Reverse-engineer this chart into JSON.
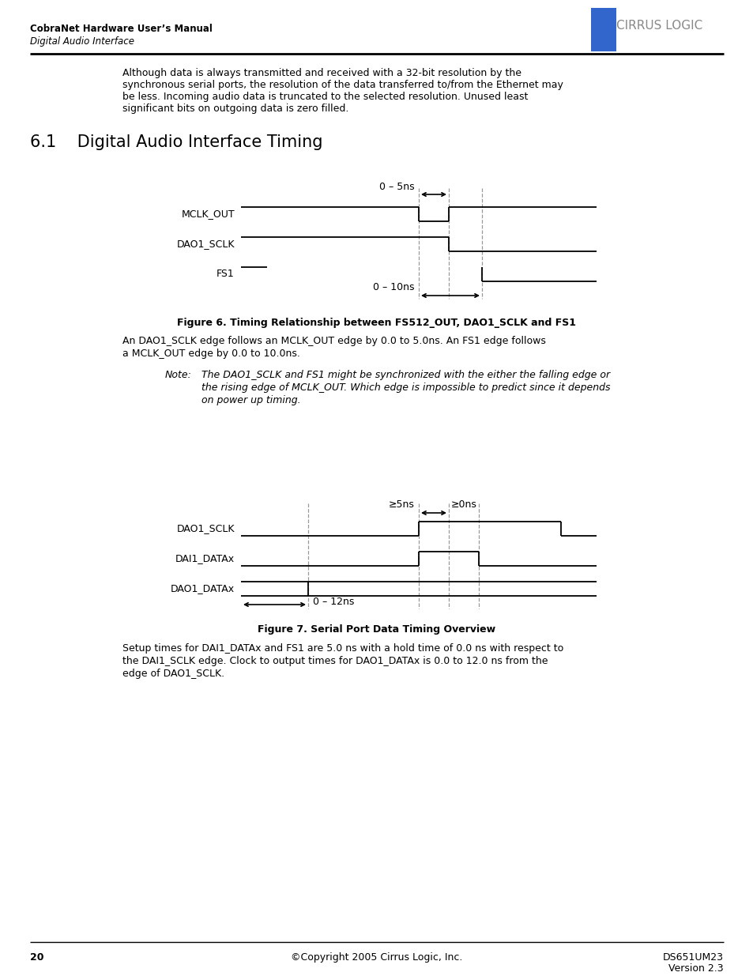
{
  "page_title_line1": "CobraNet Hardware User’s Manual",
  "page_title_line2": "Digital Audio Interface",
  "section_title": "6.1    Digital Audio Interface Timing",
  "body_text1": "Although data is always transmitted and received with a 32-bit resolution by the\nsynchronous serial ports, the resolution of the data transferred to/from the Ethernet may\nbe less. Incoming audio data is truncated to the selected resolution. Unused least\nsignificant bits on outgoing data is zero filled.",
  "fig6_caption": "Figure 6. Timing Relationship between FS512_OUT, DAO1_SCLK and FS1",
  "fig6_body_line1": "An DAO1_SCLK edge follows an MCLK_OUT edge by 0.0 to 5.0ns. An FS1 edge follows",
  "fig6_body_line2": "a MCLK_OUT edge by 0.0 to 10.0ns.",
  "fig6_note_label": "Note:",
  "fig6_note_line1": "The DAO1_SCLK and FS1 might be synchronized with the either the falling edge or",
  "fig6_note_line2": "the rising edge of MCLK_OUT. Which edge is impossible to predict since it depends",
  "fig6_note_line3": "on power up timing.",
  "fig7_caption": "Figure 7. Serial Port Data Timing Overview",
  "fig7_body_line1": "Setup times for DAI1_DATAx and FS1 are 5.0 ns with a hold time of 0.0 ns with respect to",
  "fig7_body_line2": "the DAI1_SCLK edge. Clock to output times for DAO1_DATAx is 0.0 to 12.0 ns from the",
  "fig7_body_line3": "edge of DAO1_SCLK.",
  "footer_page": "20",
  "footer_copyright": "©Copyright 2005 Cirrus Logic, Inc.",
  "footer_doc_line1": "DS651UM23",
  "footer_doc_line2": "Version 2.3",
  "bg_color": "#ffffff",
  "text_color": "#000000",
  "dash_color": "#999999",
  "logo_color": "#777777"
}
